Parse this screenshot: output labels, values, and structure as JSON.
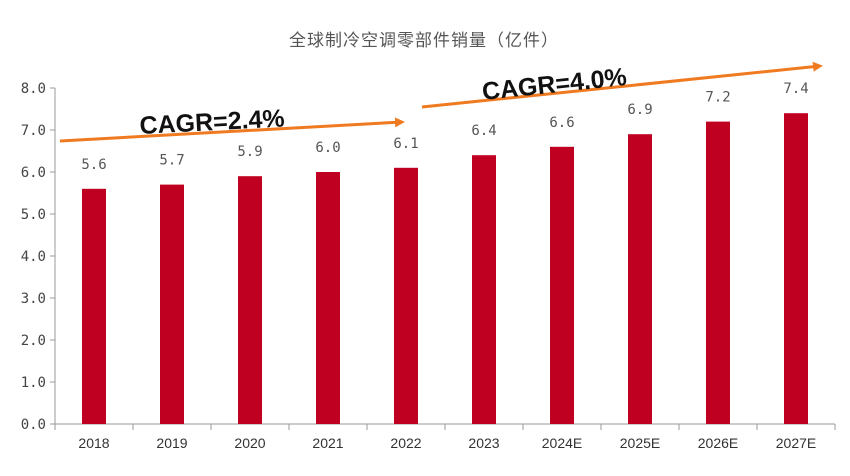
{
  "chart_data": {
    "type": "bar",
    "title": "全球制冷空调零部件销量（亿件）",
    "categories": [
      "2018",
      "2019",
      "2020",
      "2021",
      "2022",
      "2023",
      "2024E",
      "2025E",
      "2026E",
      "2027E"
    ],
    "values": [
      5.6,
      5.7,
      5.9,
      6.0,
      6.1,
      6.4,
      6.6,
      6.9,
      7.2,
      7.4
    ],
    "value_labels": [
      "5.6",
      "5.7",
      "5.9",
      "6.0",
      "6.1",
      "6.4",
      "6.6",
      "6.9",
      "7.2",
      "7.4"
    ],
    "ylim": [
      0,
      8
    ],
    "yticks": [
      "0.0",
      "1.0",
      "2.0",
      "3.0",
      "4.0",
      "5.0",
      "6.0",
      "7.0",
      "8.0"
    ],
    "xlabel": "",
    "ylabel": "",
    "grid": false,
    "bar_color": "#c00020",
    "annotations": [
      {
        "text": "CAGR=2.4%",
        "from": "2018",
        "to": "2022",
        "arrow_color": "#f07a20"
      },
      {
        "text": "CAGR=4.0%",
        "from": "2022",
        "to": "2027E",
        "arrow_color": "#f07a20"
      }
    ]
  }
}
